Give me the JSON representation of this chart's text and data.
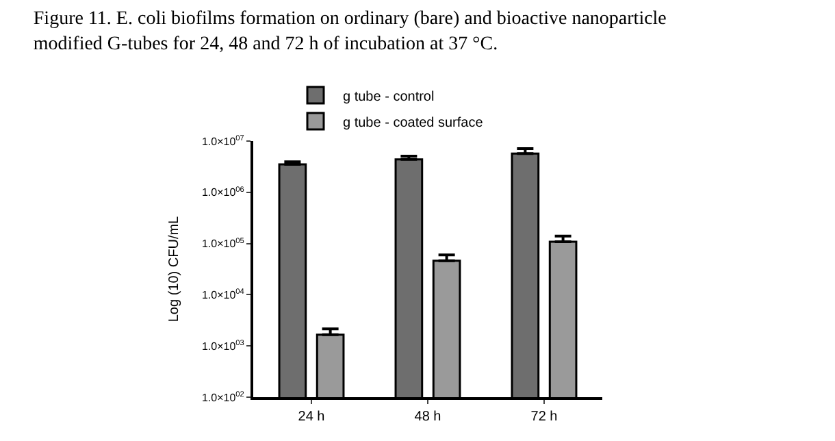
{
  "chart_data": {
    "type": "bar",
    "title": "Figure 11. E. coli biofilms formation on ordinary (bare) and bioactive nanoparticle modified G-tubes for 24, 48 and 72 h of incubation at 37 °C.",
    "ylabel": "Log (10) CFU/mL",
    "categories": [
      "24 h",
      "48 h",
      "72 h"
    ],
    "series": [
      {
        "name": "g tube - control",
        "color": "#6e6e6e",
        "values": [
          3500000,
          4400000,
          5700000
        ],
        "errors": [
          [
            3500000,
            3950000
          ],
          [
            4400000,
            5100000
          ],
          [
            5700000,
            7100000
          ]
        ]
      },
      {
        "name": "g tube - coated surface",
        "color": "#9a9a9a",
        "values": [
          1660,
          46000,
          108000
        ],
        "errors": [
          [
            1660,
            2150
          ],
          [
            46000,
            60000
          ],
          [
            108000,
            140000
          ]
        ]
      }
    ],
    "log": true,
    "ylim": [
      100,
      10000000
    ],
    "yticks": [
      {
        "value": 100,
        "label": "1.0×10$^{02}$"
      },
      {
        "value": 1000,
        "label": "1.0×10$^{03}$"
      },
      {
        "value": 10000,
        "label": "1.0×10$^{04}$"
      },
      {
        "value": 100000,
        "label": "1.0×10$^{05}$"
      },
      {
        "value": 1000000,
        "label": "1.0×10$^{06}$"
      },
      {
        "value": 10000000,
        "label": "1.0×10$^{07}$"
      }
    ],
    "legend": "top"
  }
}
